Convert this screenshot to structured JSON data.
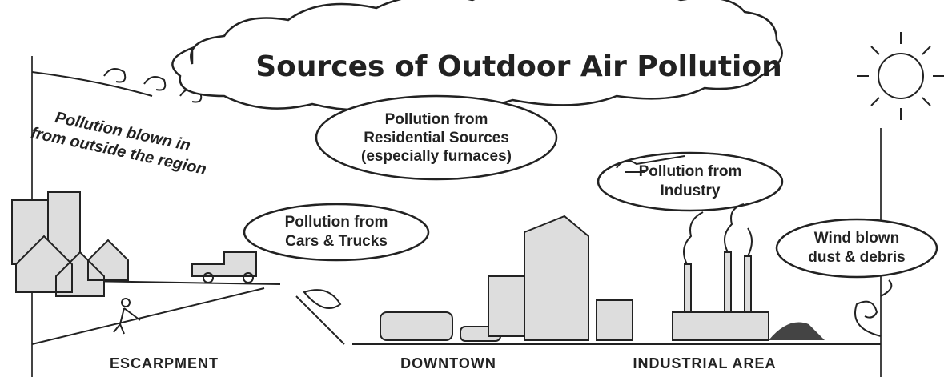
{
  "header": {
    "title": "Sources of Outdoor Air Pollution"
  },
  "callouts": [
    {
      "lines": [
        "Pollution blown in",
        "from outside the region"
      ]
    },
    {
      "lines": [
        "Pollution from",
        "Residential Sources",
        "(especially furnaces)"
      ]
    },
    {
      "lines": [
        "Pollution from",
        "Cars & Trucks"
      ]
    },
    {
      "lines": [
        "Pollution from",
        "Industry"
      ]
    },
    {
      "lines": [
        "Wind blown",
        "dust & debris"
      ]
    }
  ],
  "area_labels": [
    "ESCARPMENT",
    "DOWNTOWN",
    "INDUSTRIAL AREA"
  ]
}
